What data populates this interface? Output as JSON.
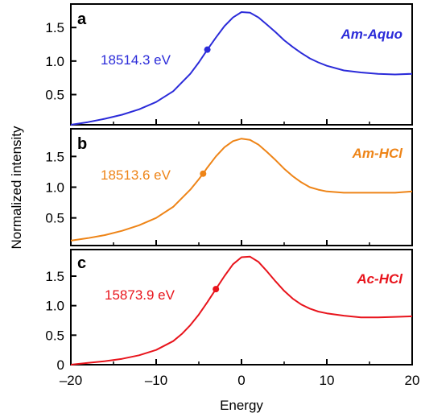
{
  "chart_data": {
    "type": "line",
    "xlabel": "Energy",
    "ylabel": "Normalized intensity",
    "xlim": [
      -20,
      20
    ],
    "x_ticks": [
      "–20",
      "–10",
      "0",
      "10",
      "20"
    ],
    "panels": [
      {
        "letter": "a",
        "sample": "Am-Aquo",
        "edge_label": "18514.3 eV",
        "color": "#2b2bd9",
        "ylim": [
          0.05,
          1.85
        ],
        "y_ticks": [
          "0.5",
          "1.0",
          "1.5"
        ],
        "y_tick_values": [
          0.5,
          1.0,
          1.5
        ],
        "edge_point": {
          "x": -4,
          "y": 1.17
        },
        "series": {
          "x": [
            -20,
            -18,
            -16,
            -14,
            -12,
            -10,
            -8,
            -6,
            -5,
            -4,
            -3,
            -2,
            -1,
            0,
            1,
            2,
            3,
            4,
            5,
            6,
            7,
            8,
            9,
            10,
            12,
            14,
            16,
            18,
            20
          ],
          "y": [
            0.05,
            0.09,
            0.14,
            0.2,
            0.28,
            0.39,
            0.55,
            0.81,
            0.98,
            1.17,
            1.35,
            1.52,
            1.65,
            1.73,
            1.72,
            1.65,
            1.54,
            1.43,
            1.31,
            1.21,
            1.12,
            1.04,
            0.98,
            0.93,
            0.86,
            0.83,
            0.81,
            0.8,
            0.81
          ]
        }
      },
      {
        "letter": "b",
        "sample": "Am-HCl",
        "edge_label": "18513.6 eV",
        "color": "#ee8417",
        "ylim": [
          0.05,
          1.95
        ],
        "y_ticks": [
          "0.5",
          "1.0",
          "1.5"
        ],
        "y_tick_values": [
          0.5,
          1.0,
          1.5
        ],
        "edge_point": {
          "x": -4.5,
          "y": 1.22
        },
        "series": {
          "x": [
            -20,
            -18,
            -16,
            -14,
            -12,
            -10,
            -8,
            -6,
            -5,
            -4.5,
            -4,
            -3,
            -2,
            -1,
            0,
            1,
            2,
            3,
            4,
            5,
            6,
            7,
            8,
            9,
            10,
            12,
            14,
            16,
            18,
            20
          ],
          "y": [
            0.13,
            0.17,
            0.22,
            0.29,
            0.38,
            0.5,
            0.68,
            0.96,
            1.13,
            1.22,
            1.32,
            1.5,
            1.65,
            1.75,
            1.79,
            1.77,
            1.69,
            1.57,
            1.44,
            1.3,
            1.18,
            1.08,
            1.0,
            0.96,
            0.93,
            0.91,
            0.91,
            0.91,
            0.91,
            0.93
          ]
        }
      },
      {
        "letter": "c",
        "sample": "Ac-HCl",
        "edge_label": "15873.9 eV",
        "color": "#e8141c",
        "ylim": [
          0,
          1.95
        ],
        "y_ticks": [
          "0",
          "0.5",
          "1.0",
          "1.5"
        ],
        "y_tick_values": [
          0,
          0.5,
          1.0,
          1.5
        ],
        "edge_point": {
          "x": -3,
          "y": 1.28
        },
        "series": {
          "x": [
            -20,
            -18,
            -16,
            -14,
            -12,
            -10,
            -8,
            -7,
            -6,
            -5,
            -4,
            -3,
            -2,
            -1,
            0,
            1,
            2,
            3,
            4,
            5,
            6,
            7,
            8,
            9,
            10,
            12,
            14,
            16,
            18,
            20
          ],
          "y": [
            0.0,
            0.03,
            0.06,
            0.1,
            0.16,
            0.25,
            0.4,
            0.52,
            0.67,
            0.85,
            1.06,
            1.28,
            1.5,
            1.7,
            1.82,
            1.83,
            1.74,
            1.58,
            1.41,
            1.25,
            1.12,
            1.02,
            0.95,
            0.9,
            0.87,
            0.83,
            0.8,
            0.8,
            0.81,
            0.82
          ]
        }
      }
    ]
  }
}
